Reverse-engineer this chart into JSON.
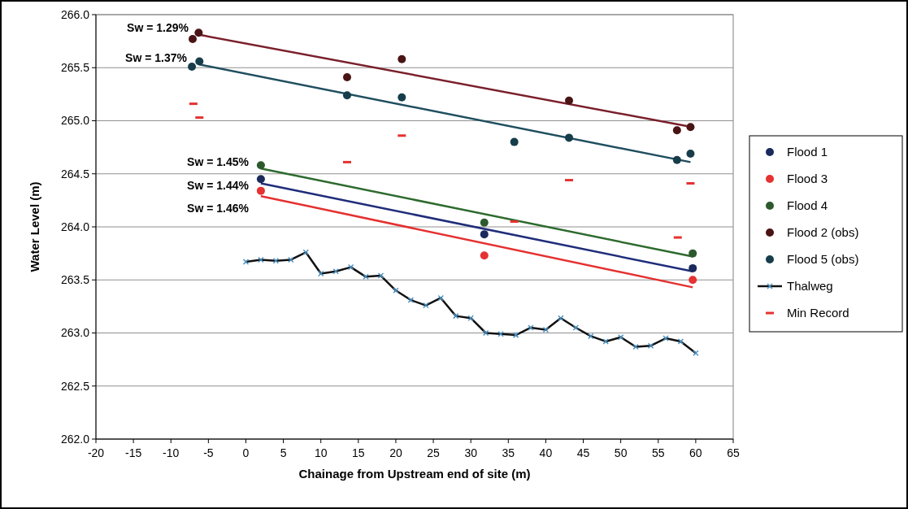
{
  "chart_data": {
    "type": "scatter",
    "xlabel": "Chainage from Upstream end of site (m)",
    "ylabel": "Water Level (m)",
    "xlim": [
      -20,
      65
    ],
    "xticks": [
      -20,
      -15,
      -10,
      -5,
      0,
      5,
      10,
      15,
      20,
      25,
      30,
      35,
      40,
      45,
      50,
      55,
      60,
      65
    ],
    "ylim": [
      262,
      266
    ],
    "yticks": [
      {
        "value": 262,
        "label": "262.0"
      },
      {
        "value": 262.5,
        "label": "262.5"
      },
      {
        "value": 263,
        "label": "263.0"
      },
      {
        "value": 263.5,
        "label": "263.5"
      },
      {
        "value": 264,
        "label": "264.0"
      },
      {
        "value": 264.5,
        "label": "264.5"
      },
      {
        "value": 265,
        "label": "265.0"
      },
      {
        "value": 265.5,
        "label": "265.5"
      },
      {
        "value": 266,
        "label": "266.0"
      }
    ],
    "grid": "y",
    "legend": "right",
    "marker": "circle",
    "series": [
      {
        "type": "line",
        "color": "#7a1f2b",
        "x": [
          -6.2,
          58.8
        ],
        "values": [
          265.81,
          264.95
        ],
        "marker": "none"
      },
      {
        "type": "line",
        "color": "#1f4e5f",
        "x": [
          -6.2,
          59.3
        ],
        "values": [
          265.53,
          264.61
        ],
        "marker": "none"
      },
      {
        "type": "line",
        "color": "#2e6a2e",
        "x": [
          2,
          59.6
        ],
        "values": [
          264.55,
          263.72
        ],
        "marker": "none"
      },
      {
        "type": "line",
        "color": "#1f2d7a",
        "x": [
          2,
          59.6
        ],
        "values": [
          264.41,
          263.58
        ],
        "marker": "none"
      },
      {
        "type": "line",
        "color": "#e53030",
        "x": [
          2,
          59.6
        ],
        "values": [
          264.29,
          263.43
        ],
        "marker": "none"
      },
      {
        "name": "Flood 1",
        "color": "#1a2a5c",
        "x": [
          2,
          31.8,
          59.6
        ],
        "values": [
          264.45,
          263.93,
          263.61
        ]
      },
      {
        "name": "Flood 3",
        "color": "#e53232",
        "x": [
          2,
          31.8,
          59.6
        ],
        "values": [
          264.34,
          263.73,
          263.5
        ]
      },
      {
        "name": "Flood 4",
        "color": "#2d5a2d",
        "x": [
          2,
          31.8,
          59.6
        ],
        "values": [
          264.58,
          264.04,
          263.75
        ]
      },
      {
        "name": "Flood 2 (obs)",
        "color": "#4a1414",
        "x": [
          -7.1,
          -6.3,
          13.5,
          20.8,
          43.1,
          57.5,
          59.3
        ],
        "values": [
          265.77,
          265.83,
          265.41,
          265.58,
          265.19,
          264.91,
          264.94
        ]
      },
      {
        "name": "Flood 5 (obs)",
        "color": "#173d4a",
        "x": [
          -7.2,
          -6.2,
          13.5,
          20.8,
          35.8,
          43.1,
          57.5,
          59.3
        ],
        "values": [
          265.51,
          265.56,
          265.24,
          265.22,
          264.8,
          264.84,
          264.63,
          264.69
        ]
      },
      {
        "name": "Thalweg",
        "type": "line",
        "color": "#111111",
        "marker": "cross",
        "x": [
          0,
          2,
          4,
          6,
          8,
          10,
          12,
          14,
          16,
          18,
          20,
          22,
          24,
          26,
          28,
          30,
          32,
          34,
          36,
          38,
          40,
          42,
          44,
          46,
          48,
          50,
          52,
          54,
          56,
          58,
          60
        ],
        "values": [
          263.67,
          263.69,
          263.68,
          263.69,
          263.76,
          263.56,
          263.58,
          263.62,
          263.53,
          263.54,
          263.4,
          263.31,
          263.26,
          263.33,
          263.16,
          263.14,
          263.0,
          262.99,
          262.98,
          263.05,
          263.03,
          263.14,
          263.05,
          262.97,
          262.92,
          262.96,
          262.87,
          262.88,
          262.95,
          262.92,
          262.81
        ]
      },
      {
        "name": "Min Record",
        "color": "#e53232",
        "marker": "square",
        "x": [
          -7.0,
          -6.2,
          13.5,
          20.8,
          35.8,
          43.1,
          57.6,
          59.3
        ],
        "values": [
          265.16,
          265.03,
          264.61,
          264.86,
          264.05,
          264.44,
          263.9,
          264.41
        ]
      }
    ],
    "annotations": [
      "Sw = 1.29%",
      "Sw = 1.37%",
      "Sw = 1.45%",
      "Sw = 1.44%",
      "Sw = 1.46%"
    ]
  }
}
